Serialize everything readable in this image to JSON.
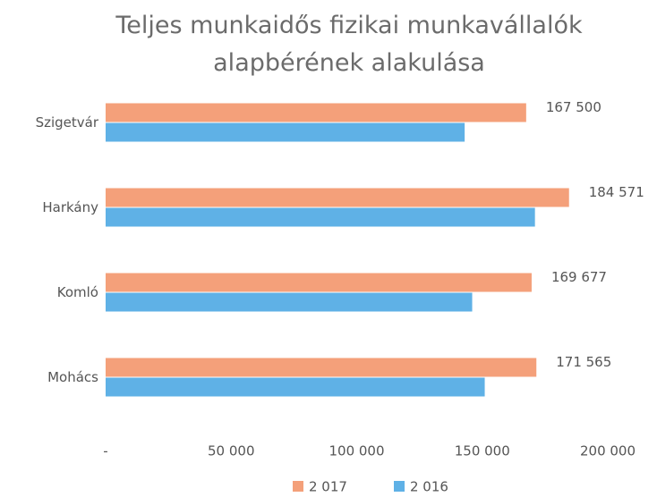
{
  "chart_data": {
    "type": "barh",
    "title": "Teljes munkaidős fizikai munkavállalók alapbérének alakulása",
    "categories": [
      "Szigetvár",
      "Harkány",
      "Komló",
      "Mohács"
    ],
    "series": [
      {
        "name": "2 017",
        "color": "#f4a07a",
        "values": [
          167500,
          184571,
          169677,
          171565
        ],
        "value_labels": [
          "167 500",
          "184 571",
          "169 677",
          "171 565"
        ]
      },
      {
        "name": "2 016",
        "color": "#5fb1e6",
        "values": [
          143000,
          171000,
          146000,
          151000
        ]
      }
    ],
    "xlim": [
      0,
      200000
    ],
    "xticks": [
      {
        "value": 0,
        "label": "-"
      },
      {
        "value": 50000,
        "label": "50 000"
      },
      {
        "value": 100000,
        "label": "100 000"
      },
      {
        "value": 150000,
        "label": "150 000"
      },
      {
        "value": 200000,
        "label": "200 000"
      }
    ],
    "legend": "bottom"
  }
}
